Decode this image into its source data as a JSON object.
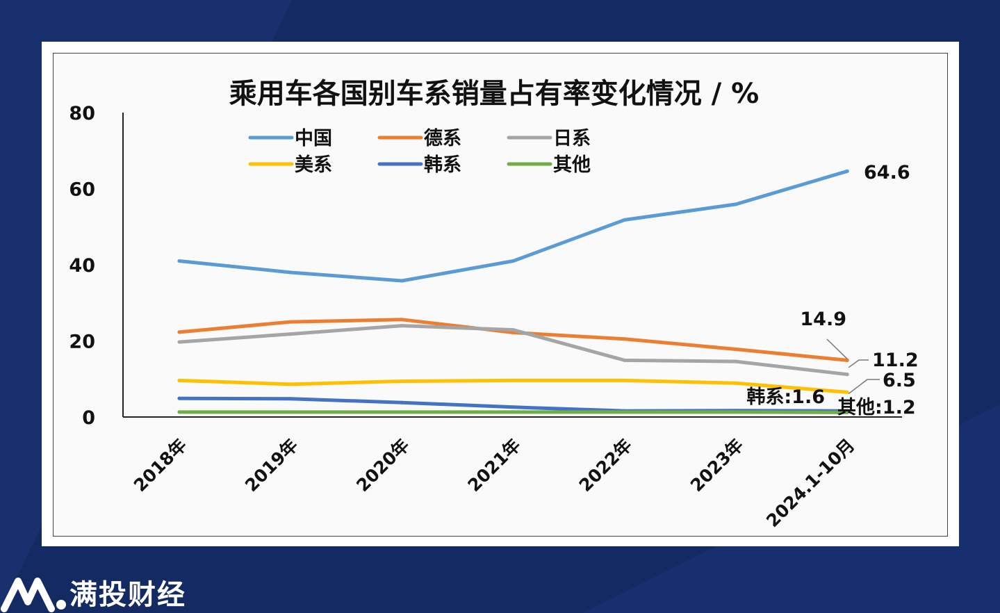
{
  "brand": {
    "name": "满投财经"
  },
  "colors": {
    "background": "#142a63",
    "china": "#5b9bd5",
    "german": "#ed7d31",
    "japanese": "#a5a5a5",
    "american": "#ffc000",
    "korean": "#4472c4",
    "others": "#70ad47"
  },
  "chart_data": {
    "type": "line",
    "title": "乘用车各国别车系销量占有率变化情况 / %",
    "x": [
      "2018年",
      "2019年",
      "2020年",
      "2021年",
      "2022年",
      "2023年",
      "2024.1-10月"
    ],
    "ylim": [
      0,
      80
    ],
    "yticks": [
      0,
      20,
      40,
      60,
      80
    ],
    "grid": false,
    "legend_position": "top-left",
    "series": [
      {
        "name": "中国",
        "color": "#5b9bd5",
        "values": [
          41.0,
          38.0,
          35.8,
          41.0,
          51.8,
          55.9,
          64.6
        ]
      },
      {
        "name": "德系",
        "color": "#ed7d31",
        "values": [
          22.3,
          25.0,
          25.6,
          22.2,
          20.5,
          17.8,
          14.9
        ]
      },
      {
        "name": "日系",
        "color": "#a5a5a5",
        "values": [
          19.7,
          21.8,
          24.0,
          22.9,
          14.9,
          14.6,
          11.2
        ]
      },
      {
        "name": "美系",
        "color": "#ffc000",
        "values": [
          9.6,
          8.6,
          9.4,
          9.6,
          9.6,
          8.9,
          6.5
        ]
      },
      {
        "name": "韩系",
        "color": "#4472c4",
        "values": [
          4.9,
          4.8,
          3.8,
          2.6,
          1.6,
          1.7,
          1.6
        ]
      },
      {
        "name": "其他",
        "color": "#70ad47",
        "values": [
          1.3,
          1.3,
          1.3,
          1.3,
          1.3,
          1.3,
          1.2
        ]
      }
    ],
    "annotations": [
      "64.6",
      "14.9",
      "11.2",
      "6.5",
      "韩系:1.6",
      "其他:1.2"
    ]
  }
}
